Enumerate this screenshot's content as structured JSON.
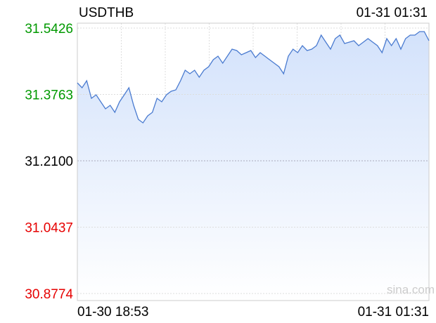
{
  "chart_data": {
    "type": "line",
    "title": "USDTHB",
    "timestamp": "01-31 01:31",
    "watermark": "sina.com",
    "x_labels": [
      "01-30 18:53",
      "01-31 01:31"
    ],
    "ylim": [
      30.8774,
      31.5426
    ],
    "yticks": [
      30.8774,
      31.0437,
      {
        "value": 31.21,
        "label": "31.2100"
      },
      31.3763,
      31.5426
    ],
    "ytick_colors": [
      "#e60000",
      "#e60000",
      "#000000",
      "#009900",
      "#009900"
    ],
    "color": "#4a7bd0",
    "fill": "#d6e4fb",
    "grid": true,
    "values": [
      31.4053,
      31.393,
      31.4106,
      31.3666,
      31.3754,
      31.3578,
      31.3402,
      31.349,
      31.3314,
      31.3578,
      31.3754,
      31.393,
      31.349,
      31.3138,
      31.305,
      31.3226,
      31.3314,
      31.3666,
      31.3578,
      31.3754,
      31.3842,
      31.3877,
      31.4106,
      31.437,
      31.4282,
      31.437,
      31.4194,
      31.437,
      31.4458,
      31.4634,
      31.4722,
      31.4546,
      31.4722,
      31.4898,
      31.4863,
      31.4757,
      31.481,
      31.4863,
      31.4687,
      31.481,
      31.4722,
      31.4634,
      31.4546,
      31.4458,
      31.4282,
      31.4722,
      31.4898,
      31.481,
      31.4986,
      31.4863,
      31.4898,
      31.4986,
      31.525,
      31.5074,
      31.4898,
      31.5162,
      31.525,
      31.5039,
      31.5074,
      31.5109,
      31.4986,
      31.5074,
      31.5162,
      31.5074,
      31.4986,
      31.481,
      31.5162,
      31.4986,
      31.5162,
      31.4898,
      31.5162,
      31.525,
      31.525,
      31.5338,
      31.5338,
      31.5109
    ]
  }
}
